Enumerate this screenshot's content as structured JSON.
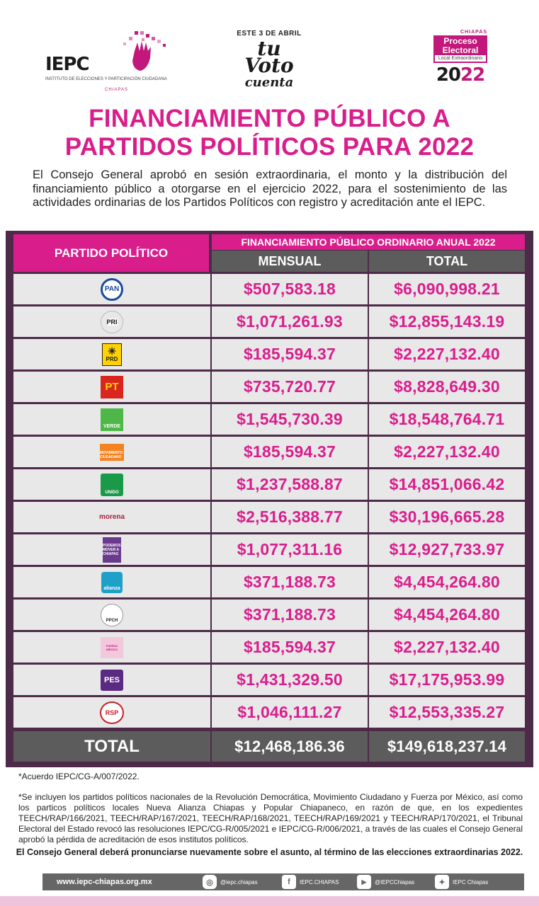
{
  "header": {
    "iepc": {
      "acronym": "IEPC",
      "name": "INSTITUTO DE ELECCIONES Y PARTICIPACIÓN CIUDADANA",
      "state": "CHIAPAS"
    },
    "campaign": {
      "top": "ESTE 3 DE ABRIL",
      "line1": "tu",
      "line2": "Voto",
      "line3": "cuenta"
    },
    "proceso": {
      "state": "CHIAPAS",
      "title1": "Proceso",
      "title2": "Electoral",
      "subtitle": "Local Extraordinario",
      "year_a": "20",
      "year_b": "22"
    }
  },
  "title": {
    "line1": "FINANCIAMIENTO PÚBLICO A",
    "line2": "PARTIDOS POLÍTICOS PARA 2022"
  },
  "intro": "El Consejo General aprobó en sesión extraordinaria, el monto y la distribución del financiamiento público a otorgarse en el ejercicio 2022, para el sostenimiento de las actividades ordinarias de los Partidos Políticos con registro y acreditación ante el IEPC.",
  "table": {
    "header_party": "PARTIDO POLÍTICO",
    "header_annual": "FINANCIAMIENTO PÚBLICO ORDINARIO ANUAL 2022",
    "header_mensual": "MENSUAL",
    "header_total": "TOTAL",
    "rows": [
      {
        "logo": "PAN",
        "mensual": "$507,583.18",
        "total": "$6,090,998.21"
      },
      {
        "logo": "PRI",
        "mensual": "$1,071,261.93",
        "total": "$12,855,143.19"
      },
      {
        "logo": "PRD",
        "mensual": "$185,594.37",
        "total": "$2,227,132.40"
      },
      {
        "logo": "PT",
        "mensual": "$735,720.77",
        "total": "$8,828,649.30"
      },
      {
        "logo": "VERDE",
        "mensual": "$1,545,730.39",
        "total": "$18,548,764.71"
      },
      {
        "logo": "MOVIMIENTO CIUDADANO",
        "mensual": "$185,594.37",
        "total": "$2,227,132.40"
      },
      {
        "logo": "UNIDO",
        "mensual": "$1,237,588.87",
        "total": "$14,851,066.42"
      },
      {
        "logo": "morena",
        "mensual": "$2,516,388.77",
        "total": "$30,196,665.28"
      },
      {
        "logo": "PODEMOS MOVER A CHIAPAS",
        "mensual": "$1,077,311.16",
        "total": "$12,927,733.97"
      },
      {
        "logo": "alianza",
        "mensual": "$371,188.73",
        "total": "$4,454,264.80"
      },
      {
        "logo": "PPCH",
        "mensual": "$371,188.73",
        "total": "$4,454,264.80"
      },
      {
        "logo": "FUERZA MÉXICO",
        "mensual": "$185,594.37",
        "total": "$2,227,132.40"
      },
      {
        "logo": "PES",
        "mensual": "$1,431,329.50",
        "total": "$17,175,953.99"
      },
      {
        "logo": "RSP",
        "mensual": "$1,046,111.27",
        "total": "$12,553,335.27"
      }
    ],
    "total_label": "TOTAL",
    "total_mensual": "$12,468,186.36",
    "total_total": "$149,618,237.14"
  },
  "notes": {
    "note1": "*Acuerdo IEPC/CG-A/007/2022.",
    "note2": "*Se incluyen los partidos políticos nacionales de la Revolución Democrática, Movimiento Ciudadano y Fuerza por México, así como los particos políticos locales Nueva Alianza Chiapas y Popular Chiapaneco, en razón de que, en los expedientes TEECH/RAP/166/2021, TEECH/RAP/167/2021, TEECH/RAP/168/2021, TEECH/RAP/169/2021 y TEECH/RAP/170/2021, el Tribunal Electoral del Estado revocó las resoluciones IEPC/CG-R/005/2021 e IEPC/CG-R/006/2021, a través de las cuales el Consejo General aprobó la pérdida de acreditación de esos institutos políticos.",
    "closing": "El Consejo General deberá pronunciarse nuevamente sobre el asunto, al término de las elecciones extraordinarias 2022."
  },
  "footer": {
    "website": "www.iepc-chiapas.org.mx",
    "instagram": "@iepc.chiapas",
    "facebook": "IEPC.CHIAPAS",
    "youtube": "@IEPCChiapas",
    "twitter": "IEPC Chiapas"
  },
  "colors": {
    "accent": "#d91e8c",
    "frame": "#4d2a48",
    "header_gray": "#5c5c5c",
    "cell_bg": "#e8e8e9"
  }
}
